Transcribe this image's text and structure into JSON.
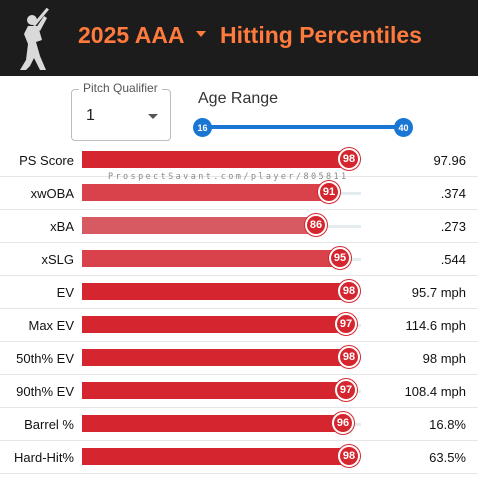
{
  "header": {
    "year_level": "2025 AAA",
    "title": "Hitting Percentiles",
    "background": "#1c1c1c",
    "accent": "#ff7a3d"
  },
  "controls": {
    "pitch_qualifier_label": "Pitch Qualifier",
    "pitch_qualifier_value": "1",
    "age_range_label": "Age Range",
    "age_min": "16",
    "age_max": "40",
    "slider_color": "#1976d2"
  },
  "watermark": "ProspectSavant.com/player/805811",
  "bar_color": "#d5262f",
  "metrics": [
    {
      "label": "PS Score",
      "percentile": 98,
      "value": "97.96"
    },
    {
      "label": "xwOBA",
      "percentile": 91,
      "value": ".374"
    },
    {
      "label": "xBA",
      "percentile": 86,
      "value": ".273"
    },
    {
      "label": "xSLG",
      "percentile": 95,
      "value": ".544"
    },
    {
      "label": "EV",
      "percentile": 98,
      "value": "95.7 mph"
    },
    {
      "label": "Max EV",
      "percentile": 97,
      "value": "114.6 mph"
    },
    {
      "label": "50th% EV",
      "percentile": 98,
      "value": "98 mph"
    },
    {
      "label": "90th% EV",
      "percentile": 97,
      "value": "108.4 mph"
    },
    {
      "label": "Barrel %",
      "percentile": 96,
      "value": "16.8%"
    },
    {
      "label": "Hard-Hit%",
      "percentile": 98,
      "value": "63.5%"
    }
  ]
}
